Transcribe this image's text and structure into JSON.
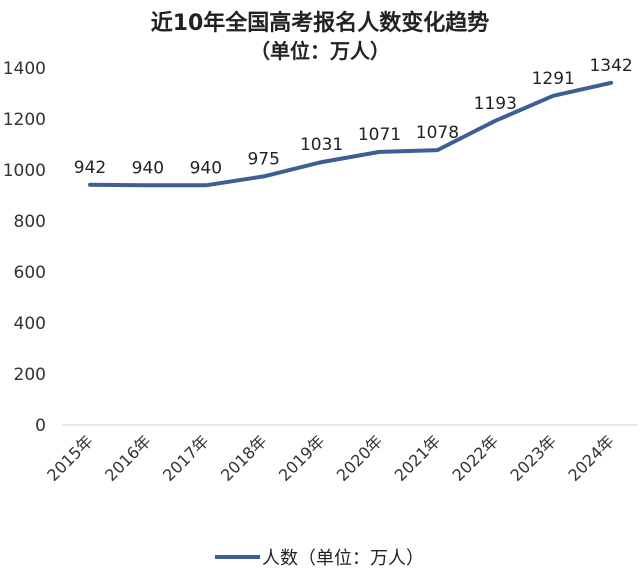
{
  "chart_data": {
    "type": "line",
    "title": "近10年全国高考报名人数变化趋势",
    "subtitle": "（单位：万人）",
    "categories": [
      "2015年",
      "2016年",
      "2017年",
      "2018年",
      "2019年",
      "2020年",
      "2021年",
      "2022年",
      "2023年",
      "2024年"
    ],
    "series": [
      {
        "name": "人数（单位：万人）",
        "values": [
          942,
          940,
          940,
          975,
          1031,
          1071,
          1078,
          1193,
          1291,
          1342
        ]
      }
    ],
    "y_ticks": [
      "0",
      "200",
      "400",
      "600",
      "800",
      "1000",
      "1200",
      "1400"
    ],
    "ylim": [
      0,
      1400
    ],
    "xlabel": "",
    "ylabel": "",
    "grid": false,
    "legend": "bottom",
    "line_color": "#3d5f94"
  }
}
